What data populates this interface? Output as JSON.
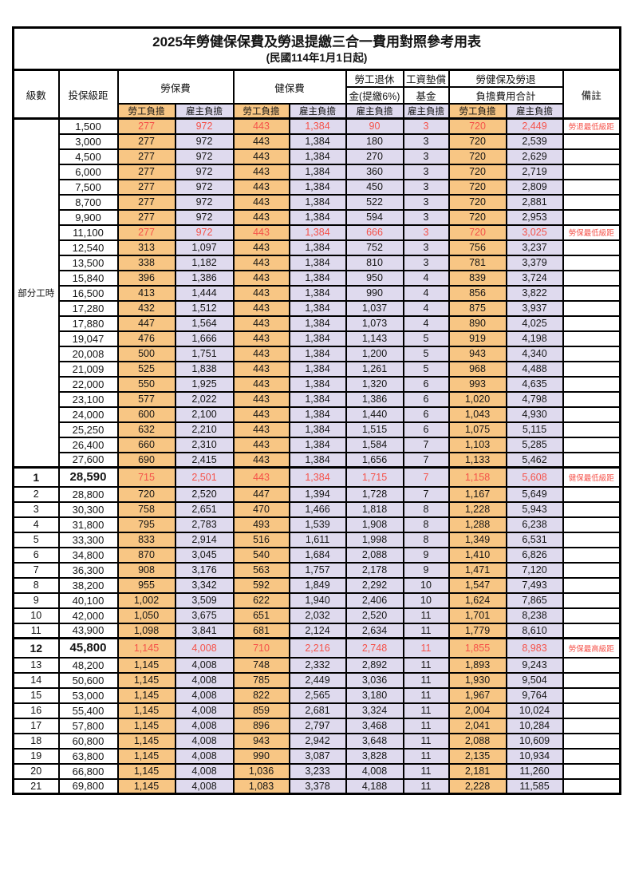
{
  "title": "2025年勞健保保費及勞退提繳三合一費用對照參考用表",
  "subtitle": "(民國114年1月1日起)",
  "header": {
    "level": "級數",
    "bracket": "投保級距",
    "labor_fee": "勞保費",
    "health_fee": "健保費",
    "pension_line1": "勞工退休",
    "pension_line2": "金(提繳6%)",
    "wage_fund_line1": "工資墊償",
    "wage_fund_line2": "基金",
    "total_line1": "勞健保及勞退",
    "total_line2": "負擔費用合計",
    "note": "備註",
    "employee": "勞工負擔",
    "employer": "雇主負擔"
  },
  "part_time_label": "部分工時",
  "colors": {
    "employee_bg": "#f8c684",
    "employer_bg": "#dfdaee",
    "red_text": "#f5524a",
    "note_red": "#f7625a",
    "grid": "#000000"
  },
  "rows": [
    {
      "level": "",
      "bracket": "1,500",
      "labor_employee": "277",
      "labor_employer": "972",
      "health_employee": "443",
      "health_employer": "1,384",
      "pension_employer": "90",
      "fund_employer": "3",
      "total_employee": "720",
      "total_employer": "2,449",
      "note": "勞退最低級距",
      "red": true,
      "highlight": false
    },
    {
      "level": "",
      "bracket": "3,000",
      "labor_employee": "277",
      "labor_employer": "972",
      "health_employee": "443",
      "health_employer": "1,384",
      "pension_employer": "180",
      "fund_employer": "3",
      "total_employee": "720",
      "total_employer": "2,539",
      "note": "",
      "red": false,
      "highlight": false
    },
    {
      "level": "",
      "bracket": "4,500",
      "labor_employee": "277",
      "labor_employer": "972",
      "health_employee": "443",
      "health_employer": "1,384",
      "pension_employer": "270",
      "fund_employer": "3",
      "total_employee": "720",
      "total_employer": "2,629",
      "note": "",
      "red": false,
      "highlight": false
    },
    {
      "level": "",
      "bracket": "6,000",
      "labor_employee": "277",
      "labor_employer": "972",
      "health_employee": "443",
      "health_employer": "1,384",
      "pension_employer": "360",
      "fund_employer": "3",
      "total_employee": "720",
      "total_employer": "2,719",
      "note": "",
      "red": false,
      "highlight": false
    },
    {
      "level": "",
      "bracket": "7,500",
      "labor_employee": "277",
      "labor_employer": "972",
      "health_employee": "443",
      "health_employer": "1,384",
      "pension_employer": "450",
      "fund_employer": "3",
      "total_employee": "720",
      "total_employer": "2,809",
      "note": "",
      "red": false,
      "highlight": false
    },
    {
      "level": "",
      "bracket": "8,700",
      "labor_employee": "277",
      "labor_employer": "972",
      "health_employee": "443",
      "health_employer": "1,384",
      "pension_employer": "522",
      "fund_employer": "3",
      "total_employee": "720",
      "total_employer": "2,881",
      "note": "",
      "red": false,
      "highlight": false
    },
    {
      "level": "",
      "bracket": "9,900",
      "labor_employee": "277",
      "labor_employer": "972",
      "health_employee": "443",
      "health_employer": "1,384",
      "pension_employer": "594",
      "fund_employer": "3",
      "total_employee": "720",
      "total_employer": "2,953",
      "note": "",
      "red": false,
      "highlight": false
    },
    {
      "level": "",
      "bracket": "11,100",
      "labor_employee": "277",
      "labor_employer": "972",
      "health_employee": "443",
      "health_employer": "1,384",
      "pension_employer": "666",
      "fund_employer": "3",
      "total_employee": "720",
      "total_employer": "3,025",
      "note": "勞保最低級距",
      "red": true,
      "highlight": false
    },
    {
      "level": "",
      "bracket": "12,540",
      "labor_employee": "313",
      "labor_employer": "1,097",
      "health_employee": "443",
      "health_employer": "1,384",
      "pension_employer": "752",
      "fund_employer": "3",
      "total_employee": "756",
      "total_employer": "3,237",
      "note": "",
      "red": false,
      "highlight": false
    },
    {
      "level": "",
      "bracket": "13,500",
      "labor_employee": "338",
      "labor_employer": "1,182",
      "health_employee": "443",
      "health_employer": "1,384",
      "pension_employer": "810",
      "fund_employer": "3",
      "total_employee": "781",
      "total_employer": "3,379",
      "note": "",
      "red": false,
      "highlight": false
    },
    {
      "level": "",
      "bracket": "15,840",
      "labor_employee": "396",
      "labor_employer": "1,386",
      "health_employee": "443",
      "health_employer": "1,384",
      "pension_employer": "950",
      "fund_employer": "4",
      "total_employee": "839",
      "total_employer": "3,724",
      "note": "",
      "red": false,
      "highlight": false
    },
    {
      "level": "",
      "bracket": "16,500",
      "labor_employee": "413",
      "labor_employer": "1,444",
      "health_employee": "443",
      "health_employer": "1,384",
      "pension_employer": "990",
      "fund_employer": "4",
      "total_employee": "856",
      "total_employer": "3,822",
      "note": "",
      "red": false,
      "highlight": false
    },
    {
      "level": "",
      "bracket": "17,280",
      "labor_employee": "432",
      "labor_employer": "1,512",
      "health_employee": "443",
      "health_employer": "1,384",
      "pension_employer": "1,037",
      "fund_employer": "4",
      "total_employee": "875",
      "total_employer": "3,937",
      "note": "",
      "red": false,
      "highlight": false
    },
    {
      "level": "",
      "bracket": "17,880",
      "labor_employee": "447",
      "labor_employer": "1,564",
      "health_employee": "443",
      "health_employer": "1,384",
      "pension_employer": "1,073",
      "fund_employer": "4",
      "total_employee": "890",
      "total_employer": "4,025",
      "note": "",
      "red": false,
      "highlight": false
    },
    {
      "level": "",
      "bracket": "19,047",
      "labor_employee": "476",
      "labor_employer": "1,666",
      "health_employee": "443",
      "health_employer": "1,384",
      "pension_employer": "1,143",
      "fund_employer": "5",
      "total_employee": "919",
      "total_employer": "4,198",
      "note": "",
      "red": false,
      "highlight": false
    },
    {
      "level": "",
      "bracket": "20,008",
      "labor_employee": "500",
      "labor_employer": "1,751",
      "health_employee": "443",
      "health_employer": "1,384",
      "pension_employer": "1,200",
      "fund_employer": "5",
      "total_employee": "943",
      "total_employer": "4,340",
      "note": "",
      "red": false,
      "highlight": false
    },
    {
      "level": "",
      "bracket": "21,009",
      "labor_employee": "525",
      "labor_employer": "1,838",
      "health_employee": "443",
      "health_employer": "1,384",
      "pension_employer": "1,261",
      "fund_employer": "5",
      "total_employee": "968",
      "total_employer": "4,488",
      "note": "",
      "red": false,
      "highlight": false
    },
    {
      "level": "",
      "bracket": "22,000",
      "labor_employee": "550",
      "labor_employer": "1,925",
      "health_employee": "443",
      "health_employer": "1,384",
      "pension_employer": "1,320",
      "fund_employer": "6",
      "total_employee": "993",
      "total_employer": "4,635",
      "note": "",
      "red": false,
      "highlight": false
    },
    {
      "level": "",
      "bracket": "23,100",
      "labor_employee": "577",
      "labor_employer": "2,022",
      "health_employee": "443",
      "health_employer": "1,384",
      "pension_employer": "1,386",
      "fund_employer": "6",
      "total_employee": "1,020",
      "total_employer": "4,798",
      "note": "",
      "red": false,
      "highlight": false
    },
    {
      "level": "",
      "bracket": "24,000",
      "labor_employee": "600",
      "labor_employer": "2,100",
      "health_employee": "443",
      "health_employer": "1,384",
      "pension_employer": "1,440",
      "fund_employer": "6",
      "total_employee": "1,043",
      "total_employer": "4,930",
      "note": "",
      "red": false,
      "highlight": false
    },
    {
      "level": "",
      "bracket": "25,250",
      "labor_employee": "632",
      "labor_employer": "2,210",
      "health_employee": "443",
      "health_employer": "1,384",
      "pension_employer": "1,515",
      "fund_employer": "6",
      "total_employee": "1,075",
      "total_employer": "5,115",
      "note": "",
      "red": false,
      "highlight": false
    },
    {
      "level": "",
      "bracket": "26,400",
      "labor_employee": "660",
      "labor_employer": "2,310",
      "health_employee": "443",
      "health_employer": "1,384",
      "pension_employer": "1,584",
      "fund_employer": "7",
      "total_employee": "1,103",
      "total_employer": "5,285",
      "note": "",
      "red": false,
      "highlight": false
    },
    {
      "level": "",
      "bracket": "27,600",
      "labor_employee": "690",
      "labor_employer": "2,415",
      "health_employee": "443",
      "health_employer": "1,384",
      "pension_employer": "1,656",
      "fund_employer": "7",
      "total_employee": "1,133",
      "total_employer": "5,462",
      "note": "",
      "red": false,
      "highlight": false
    },
    {
      "level": "1",
      "bracket": "28,590",
      "labor_employee": "715",
      "labor_employer": "2,501",
      "health_employee": "443",
      "health_employer": "1,384",
      "pension_employer": "1,715",
      "fund_employer": "7",
      "total_employee": "1,158",
      "total_employer": "5,608",
      "note": "健保最低級距",
      "red": true,
      "highlight": true
    },
    {
      "level": "2",
      "bracket": "28,800",
      "labor_employee": "720",
      "labor_employer": "2,520",
      "health_employee": "447",
      "health_employer": "1,394",
      "pension_employer": "1,728",
      "fund_employer": "7",
      "total_employee": "1,167",
      "total_employer": "5,649",
      "note": "",
      "red": false,
      "highlight": false
    },
    {
      "level": "3",
      "bracket": "30,300",
      "labor_employee": "758",
      "labor_employer": "2,651",
      "health_employee": "470",
      "health_employer": "1,466",
      "pension_employer": "1,818",
      "fund_employer": "8",
      "total_employee": "1,228",
      "total_employer": "5,943",
      "note": "",
      "red": false,
      "highlight": false
    },
    {
      "level": "4",
      "bracket": "31,800",
      "labor_employee": "795",
      "labor_employer": "2,783",
      "health_employee": "493",
      "health_employer": "1,539",
      "pension_employer": "1,908",
      "fund_employer": "8",
      "total_employee": "1,288",
      "total_employer": "6,238",
      "note": "",
      "red": false,
      "highlight": false
    },
    {
      "level": "5",
      "bracket": "33,300",
      "labor_employee": "833",
      "labor_employer": "2,914",
      "health_employee": "516",
      "health_employer": "1,611",
      "pension_employer": "1,998",
      "fund_employer": "8",
      "total_employee": "1,349",
      "total_employer": "6,531",
      "note": "",
      "red": false,
      "highlight": false
    },
    {
      "level": "6",
      "bracket": "34,800",
      "labor_employee": "870",
      "labor_employer": "3,045",
      "health_employee": "540",
      "health_employer": "1,684",
      "pension_employer": "2,088",
      "fund_employer": "9",
      "total_employee": "1,410",
      "total_employer": "6,826",
      "note": "",
      "red": false,
      "highlight": false
    },
    {
      "level": "7",
      "bracket": "36,300",
      "labor_employee": "908",
      "labor_employer": "3,176",
      "health_employee": "563",
      "health_employer": "1,757",
      "pension_employer": "2,178",
      "fund_employer": "9",
      "total_employee": "1,471",
      "total_employer": "7,120",
      "note": "",
      "red": false,
      "highlight": false
    },
    {
      "level": "8",
      "bracket": "38,200",
      "labor_employee": "955",
      "labor_employer": "3,342",
      "health_employee": "592",
      "health_employer": "1,849",
      "pension_employer": "2,292",
      "fund_employer": "10",
      "total_employee": "1,547",
      "total_employer": "7,493",
      "note": "",
      "red": false,
      "highlight": false
    },
    {
      "level": "9",
      "bracket": "40,100",
      "labor_employee": "1,002",
      "labor_employer": "3,509",
      "health_employee": "622",
      "health_employer": "1,940",
      "pension_employer": "2,406",
      "fund_employer": "10",
      "total_employee": "1,624",
      "total_employer": "7,865",
      "note": "",
      "red": false,
      "highlight": false
    },
    {
      "level": "10",
      "bracket": "42,000",
      "labor_employee": "1,050",
      "labor_employer": "3,675",
      "health_employee": "651",
      "health_employer": "2,032",
      "pension_employer": "2,520",
      "fund_employer": "11",
      "total_employee": "1,701",
      "total_employer": "8,238",
      "note": "",
      "red": false,
      "highlight": false
    },
    {
      "level": "11",
      "bracket": "43,900",
      "labor_employee": "1,098",
      "labor_employer": "3,841",
      "health_employee": "681",
      "health_employer": "2,124",
      "pension_employer": "2,634",
      "fund_employer": "11",
      "total_employee": "1,779",
      "total_employer": "8,610",
      "note": "",
      "red": false,
      "highlight": false
    },
    {
      "level": "12",
      "bracket": "45,800",
      "labor_employee": "1,145",
      "labor_employer": "4,008",
      "health_employee": "710",
      "health_employer": "2,216",
      "pension_employer": "2,748",
      "fund_employer": "11",
      "total_employee": "1,855",
      "total_employer": "8,983",
      "note": "勞保最高級距",
      "red": true,
      "highlight": true
    },
    {
      "level": "13",
      "bracket": "48,200",
      "labor_employee": "1,145",
      "labor_employer": "4,008",
      "health_employee": "748",
      "health_employer": "2,332",
      "pension_employer": "2,892",
      "fund_employer": "11",
      "total_employee": "1,893",
      "total_employer": "9,243",
      "note": "",
      "red": false,
      "highlight": false
    },
    {
      "level": "14",
      "bracket": "50,600",
      "labor_employee": "1,145",
      "labor_employer": "4,008",
      "health_employee": "785",
      "health_employer": "2,449",
      "pension_employer": "3,036",
      "fund_employer": "11",
      "total_employee": "1,930",
      "total_employer": "9,504",
      "note": "",
      "red": false,
      "highlight": false
    },
    {
      "level": "15",
      "bracket": "53,000",
      "labor_employee": "1,145",
      "labor_employer": "4,008",
      "health_employee": "822",
      "health_employer": "2,565",
      "pension_employer": "3,180",
      "fund_employer": "11",
      "total_employee": "1,967",
      "total_employer": "9,764",
      "note": "",
      "red": false,
      "highlight": false
    },
    {
      "level": "16",
      "bracket": "55,400",
      "labor_employee": "1,145",
      "labor_employer": "4,008",
      "health_employee": "859",
      "health_employer": "2,681",
      "pension_employer": "3,324",
      "fund_employer": "11",
      "total_employee": "2,004",
      "total_employer": "10,024",
      "note": "",
      "red": false,
      "highlight": false
    },
    {
      "level": "17",
      "bracket": "57,800",
      "labor_employee": "1,145",
      "labor_employer": "4,008",
      "health_employee": "896",
      "health_employer": "2,797",
      "pension_employer": "3,468",
      "fund_employer": "11",
      "total_employee": "2,041",
      "total_employer": "10,284",
      "note": "",
      "red": false,
      "highlight": false
    },
    {
      "level": "18",
      "bracket": "60,800",
      "labor_employee": "1,145",
      "labor_employer": "4,008",
      "health_employee": "943",
      "health_employer": "2,942",
      "pension_employer": "3,648",
      "fund_employer": "11",
      "total_employee": "2,088",
      "total_employer": "10,609",
      "note": "",
      "red": false,
      "highlight": false
    },
    {
      "level": "19",
      "bracket": "63,800",
      "labor_employee": "1,145",
      "labor_employer": "4,008",
      "health_employee": "990",
      "health_employer": "3,087",
      "pension_employer": "3,828",
      "fund_employer": "11",
      "total_employee": "2,135",
      "total_employer": "10,934",
      "note": "",
      "red": false,
      "highlight": false
    },
    {
      "level": "20",
      "bracket": "66,800",
      "labor_employee": "1,145",
      "labor_employer": "4,008",
      "health_employee": "1,036",
      "health_employer": "3,233",
      "pension_employer": "4,008",
      "fund_employer": "11",
      "total_employee": "2,181",
      "total_employer": "11,260",
      "note": "",
      "red": false,
      "highlight": false
    },
    {
      "level": "21",
      "bracket": "69,800",
      "labor_employee": "1,145",
      "labor_employer": "4,008",
      "health_employee": "1,083",
      "health_employer": "3,378",
      "pension_employer": "4,188",
      "fund_employer": "11",
      "total_employee": "2,228",
      "total_employer": "11,585",
      "note": "",
      "red": false,
      "highlight": false
    }
  ]
}
